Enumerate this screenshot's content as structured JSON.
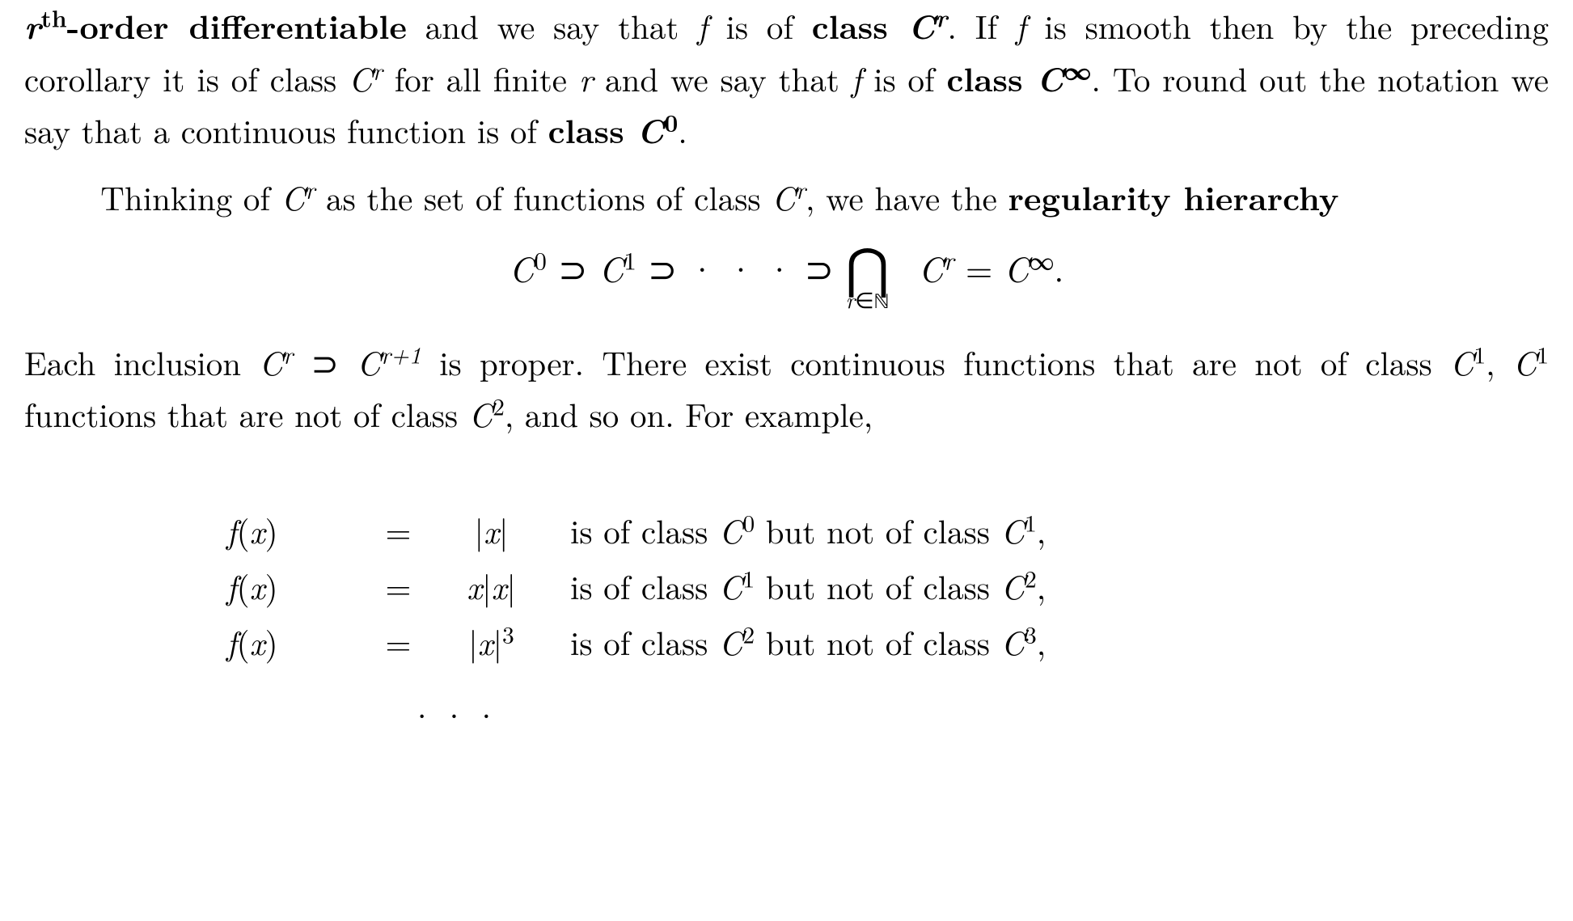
{
  "page": {
    "background_color": "#ffffff",
    "text_color": "#000000",
    "font_family": "Computer Modern / Times-like serif",
    "body_fontsize_pt": 30,
    "line_height": 1.55
  },
  "para1": {
    "b1_prefix_var": "r",
    "b1_sup": "th",
    "b1_suffix": "-order differentiable",
    "t1": " and we say that ",
    "f1": "f",
    "t2": " is of ",
    "b2_text": "class ",
    "b2_var": "C",
    "b2_sup": "r",
    "t3": ". If ",
    "f2": "f",
    "t4": " is smooth then by the preceding corollary it is of class ",
    "c1": "C",
    "c1_sup": "r",
    "t5": " for all finite ",
    "r": "r",
    "t6": " and we say that ",
    "f3": "f",
    "t7": " is of ",
    "b3_text": "class ",
    "b3_var": "C",
    "b3_sup": "∞",
    "t8": ". To round out the notation we say that a continuous function is of ",
    "b4_text": "class ",
    "b4_var": "C",
    "b4_sup": "0",
    "t9": "."
  },
  "para2": {
    "t1": "Thinking of ",
    "c": "C",
    "c_sup": "r",
    "t2": " as the set of functions of class ",
    "c2": "C",
    "c2_sup": "r",
    "t3": ", we have the ",
    "b": "regularity hierarchy"
  },
  "display1": {
    "C": "C",
    "sup0": "0",
    "supset": " ⊃ ",
    "sup1": "1",
    "dots": " · · · ",
    "bigcap": "⋂",
    "cap_sub_var": "r",
    "cap_sub_in": "∈",
    "cap_sub_N": "ℕ",
    "sup_r": "r",
    "eq": " = ",
    "sup_inf": "∞",
    "period": "."
  },
  "para3": {
    "t1": "Each inclusion ",
    "c1": "C",
    "c1_sup": "r",
    "supset": " ⊃ ",
    "c2": "C",
    "c2_sup": "r+1",
    "t2": " is proper. There exist continuous functions that are not of class ",
    "c3": "C",
    "c3_sup": "1",
    "t3": ", ",
    "c4": "C",
    "c4_sup": "1",
    "t4": " functions that are not of class ",
    "c5": "C",
    "c5_sup": "2",
    "t5": ", and so on. For example,"
  },
  "examples": {
    "rows": [
      {
        "lhs_f": "f",
        "lhs_open": "(",
        "lhs_var": "x",
        "lhs_close": ")",
        "eq": "=",
        "rhs": "|x|",
        "desc_pre": "is of class ",
        "d_c1": "C",
        "d_s1": "0",
        "desc_mid": " but not of class ",
        "d_c2": "C",
        "d_s2": "1",
        "comma": ","
      },
      {
        "lhs_f": "f",
        "lhs_open": "(",
        "lhs_var": "x",
        "lhs_close": ")",
        "eq": "=",
        "rhs": "x|x|",
        "desc_pre": "is of class ",
        "d_c1": "C",
        "d_s1": "1",
        "desc_mid": " but not of class ",
        "d_c2": "C",
        "d_s2": "2",
        "comma": ","
      },
      {
        "lhs_f": "f",
        "lhs_open": "(",
        "lhs_var": "x",
        "lhs_close": ")",
        "eq": "=",
        "rhs_base": "|x|",
        "rhs_sup": "3",
        "desc_pre": "is of class ",
        "d_c1": "C",
        "d_s1": "2",
        "desc_mid": " but not of class ",
        "d_c2": "C",
        "d_s2": "3",
        "comma": ","
      }
    ],
    "dots": ". . ."
  }
}
